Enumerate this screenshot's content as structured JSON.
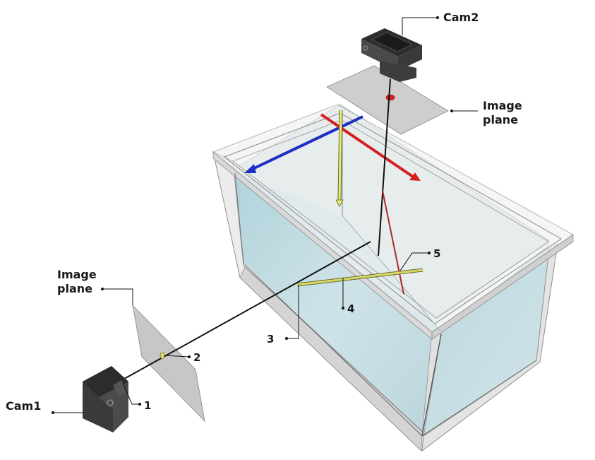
{
  "labels": {
    "cam1": "Cam1",
    "cam2": "Cam2",
    "image_plane_left": [
      "Image",
      "plane"
    ],
    "image_plane_top": [
      "Image",
      "plane"
    ],
    "n1": "1",
    "n2": "2",
    "n3": "3",
    "n4": "4",
    "n5": "5"
  },
  "colors": {
    "water": "#c4dce4",
    "glass": "#e6e6e6",
    "axis_x": "#d42020",
    "axis_y": "#1d2fc4",
    "axis_z": "#e8ec74",
    "object": "#d6da6a",
    "image_plane": "#bdbdbd",
    "camera": "#3a3a3a",
    "projection_point": "#d42020"
  }
}
